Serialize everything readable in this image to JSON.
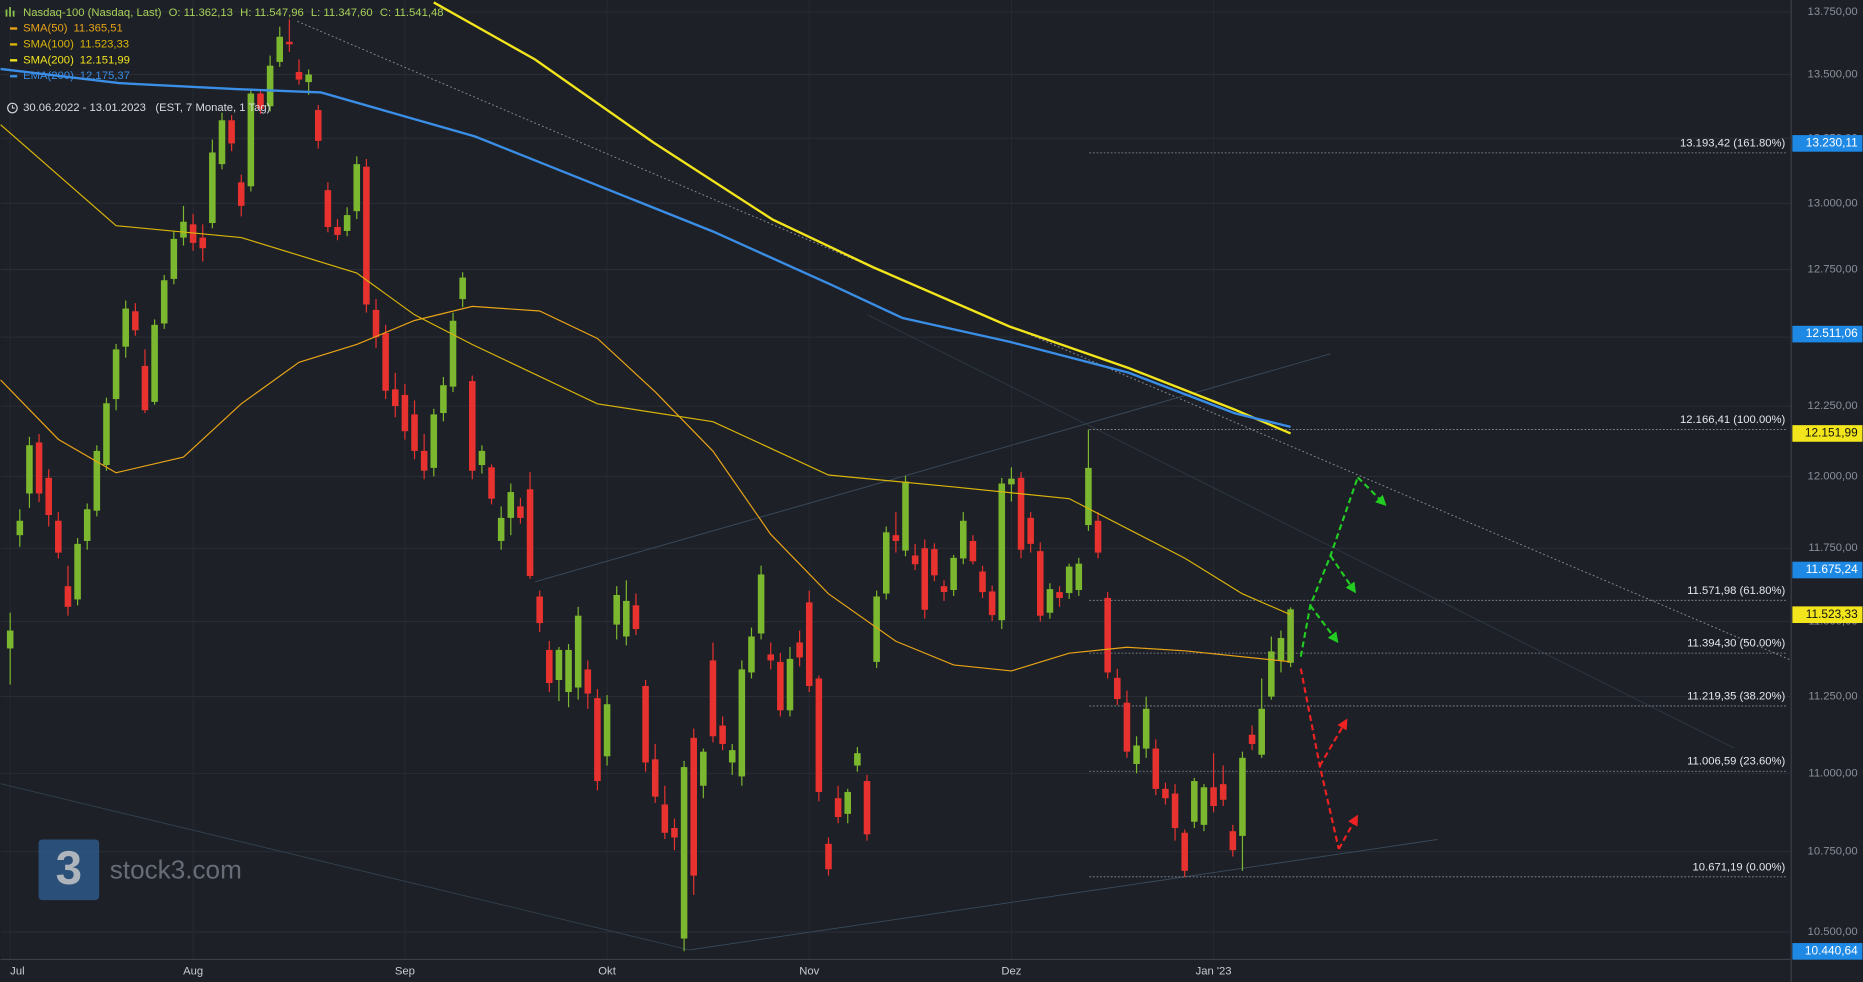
{
  "chart_data": {
    "type": "candlestick",
    "title": "Nasdaq-100 (Nasdaq, Last)",
    "ohlc_labels": [
      "O: 11.362,13",
      "H: 11.547,96",
      "L: 11.347,60",
      "C: 11.541,48"
    ],
    "date_range": "30.06.2022 - 13.01.2023",
    "period": "(EST, 7 Monate, 1 Tag)",
    "watermark": "stock3.com",
    "logo": "3",
    "log_scale": true,
    "grid": true,
    "up_color": "#7cb82f",
    "down_color": "#e8322f",
    "xlim": [
      -1,
      185
    ],
    "xticks": [
      {
        "value": 0,
        "label": "Jul"
      },
      {
        "value": 19,
        "label": "Aug"
      },
      {
        "value": 41,
        "label": "Sep"
      },
      {
        "value": 62,
        "label": "Okt"
      },
      {
        "value": 83,
        "label": "Nov"
      },
      {
        "value": 104,
        "label": "Dez"
      },
      {
        "value": 125,
        "label": "Jan '23"
      }
    ],
    "ylim": [
      10416,
      13798
    ],
    "yticks": [
      {
        "value": 10500,
        "label": "10.500,00"
      },
      {
        "value": 10750,
        "label": "10.750,00"
      },
      {
        "value": 11000,
        "label": "11.000,00"
      },
      {
        "value": 11250,
        "label": "11.250,00"
      },
      {
        "value": 11500,
        "label": "11.500,00"
      },
      {
        "value": 11750,
        "label": "11.750,00"
      },
      {
        "value": 12000,
        "label": "12.000,00"
      },
      {
        "value": 12250,
        "label": "12.250,00"
      },
      {
        "value": 12500,
        "label": "12.500,00"
      },
      {
        "value": 12750,
        "label": "12.750,00"
      },
      {
        "value": 13000,
        "label": "13.000,00"
      },
      {
        "value": 13250,
        "label": "13.250,00"
      },
      {
        "value": 13500,
        "label": "13.500,00"
      },
      {
        "value": 13750,
        "label": "13.750,00"
      }
    ],
    "candles": [
      [
        11410,
        11530,
        11290,
        11470
      ],
      [
        11795,
        11885,
        11755,
        11845
      ],
      [
        11940,
        12140,
        11890,
        12110
      ],
      [
        12120,
        12150,
        11910,
        11940
      ],
      [
        11995,
        12025,
        11825,
        11865
      ],
      [
        11845,
        11875,
        11715,
        11735
      ],
      [
        11620,
        11690,
        11520,
        11550
      ],
      [
        11575,
        11785,
        11555,
        11765
      ],
      [
        11775,
        11905,
        11745,
        11885
      ],
      [
        11880,
        12110,
        11860,
        12090
      ],
      [
        12040,
        12280,
        12020,
        12260
      ],
      [
        12275,
        12475,
        12235,
        12455
      ],
      [
        12465,
        12635,
        12425,
        12605
      ],
      [
        12595,
        12625,
        12505,
        12525
      ],
      [
        12395,
        12455,
        12225,
        12235
      ],
      [
        12265,
        12565,
        12255,
        12545
      ],
      [
        12550,
        12730,
        12530,
        12710
      ],
      [
        12715,
        12895,
        12695,
        12865
      ],
      [
        12870,
        12990,
        12840,
        12930
      ],
      [
        12920,
        12960,
        12820,
        12850
      ],
      [
        12870,
        12920,
        12780,
        12830
      ],
      [
        12925,
        13245,
        12905,
        13195
      ],
      [
        13150,
        13350,
        13130,
        13320
      ],
      [
        13320,
        13340,
        13200,
        13230
      ],
      [
        13080,
        13110,
        12950,
        12990
      ],
      [
        13065,
        13445,
        13045,
        13425
      ],
      [
        13425,
        13435,
        13345,
        13365
      ],
      [
        13375,
        13575,
        13355,
        13535
      ],
      [
        13550,
        13690,
        13530,
        13650
      ],
      [
        13630,
        13720,
        13590,
        13620
      ],
      [
        13510,
        13560,
        13460,
        13480
      ],
      [
        13470,
        13520,
        13420,
        13500
      ],
      [
        13360,
        13380,
        13210,
        13240
      ],
      [
        13050,
        13080,
        12890,
        12910
      ],
      [
        12910,
        12940,
        12860,
        12880
      ],
      [
        12895,
        12985,
        12875,
        12955
      ],
      [
        12970,
        13180,
        12940,
        13150
      ],
      [
        13140,
        13170,
        12590,
        12620
      ],
      [
        12600,
        12640,
        12460,
        12500
      ],
      [
        12515,
        12545,
        12275,
        12305
      ],
      [
        12310,
        12370,
        12210,
        12250
      ],
      [
        12290,
        12330,
        12130,
        12160
      ],
      [
        12220,
        12270,
        12060,
        12090
      ],
      [
        12090,
        12150,
        11990,
        12020
      ],
      [
        12030,
        12240,
        12000,
        12220
      ],
      [
        12225,
        12355,
        12195,
        12325
      ],
      [
        12320,
        12590,
        12300,
        12560
      ],
      [
        12640,
        12740,
        12610,
        12720
      ],
      [
        12340,
        12360,
        11990,
        12020
      ],
      [
        12040,
        12110,
        12010,
        12090
      ],
      [
        12032,
        12042,
        11902,
        11922
      ],
      [
        11775,
        11895,
        11745,
        11855
      ],
      [
        11855,
        11975,
        11795,
        11945
      ],
      [
        11895,
        11925,
        11835,
        11855
      ],
      [
        11955,
        12015,
        11645,
        11655
      ],
      [
        11585,
        11605,
        11465,
        11495
      ],
      [
        11405,
        11435,
        11265,
        11295
      ],
      [
        11305,
        11415,
        11235,
        11405
      ],
      [
        11265,
        11425,
        11215,
        11405
      ],
      [
        11280,
        11550,
        11240,
        11520
      ],
      [
        11340,
        11370,
        11210,
        11260
      ],
      [
        11245,
        11275,
        10945,
        10975
      ],
      [
        11055,
        11255,
        11025,
        11225
      ],
      [
        11490,
        11620,
        11440,
        11590
      ],
      [
        11450,
        11640,
        11420,
        11570
      ],
      [
        11555,
        11595,
        11455,
        11475
      ],
      [
        11285,
        11305,
        11005,
        11035
      ],
      [
        11045,
        11095,
        10905,
        10925
      ],
      [
        10900,
        10960,
        10790,
        10810
      ],
      [
        10825,
        10855,
        10755,
        10795
      ],
      [
        10480,
        11040,
        10441,
        11020
      ],
      [
        11115,
        11145,
        10615,
        10675
      ],
      [
        10960,
        11080,
        10920,
        11070
      ],
      [
        11370,
        11430,
        11100,
        11120
      ],
      [
        11155,
        11185,
        11075,
        11095
      ],
      [
        11035,
        11095,
        10995,
        11075
      ],
      [
        10990,
        11370,
        10960,
        11340
      ],
      [
        11330,
        11480,
        11310,
        11450
      ],
      [
        11460,
        11690,
        11440,
        11660
      ],
      [
        11390,
        11430,
        11340,
        11370
      ],
      [
        11365,
        11395,
        11185,
        11205
      ],
      [
        11205,
        11415,
        11185,
        11375
      ],
      [
        11430,
        11470,
        11350,
        11380
      ],
      [
        11565,
        11605,
        11265,
        11285
      ],
      [
        11310,
        11320,
        10910,
        10940
      ],
      [
        10775,
        10795,
        10675,
        10695
      ],
      [
        10920,
        10960,
        10840,
        10860
      ],
      [
        10870,
        10950,
        10840,
        10940
      ],
      [
        11025,
        11085,
        11005,
        11065
      ],
      [
        10975,
        10995,
        10785,
        10805
      ],
      [
        11365,
        11605,
        11345,
        11585
      ],
      [
        11595,
        11825,
        11575,
        11805
      ],
      [
        11795,
        11875,
        11735,
        11775
      ],
      [
        11742,
        12002,
        11722,
        11982
      ],
      [
        11725,
        11765,
        11675,
        11695
      ],
      [
        11750,
        11780,
        11510,
        11540
      ],
      [
        11747,
        11767,
        11637,
        11657
      ],
      [
        11620,
        11640,
        11570,
        11600
      ],
      [
        11607,
        11727,
        11587,
        11717
      ],
      [
        11715,
        11875,
        11695,
        11845
      ],
      [
        11775,
        11795,
        11695,
        11705
      ],
      [
        11670,
        11690,
        11580,
        11600
      ],
      [
        11602,
        11622,
        11502,
        11522
      ],
      [
        11505,
        11995,
        11475,
        11975
      ],
      [
        11972,
        12032,
        11912,
        11992
      ],
      [
        11995,
        12015,
        11715,
        11745
      ],
      [
        11855,
        11875,
        11735,
        11765
      ],
      [
        11740,
        11770,
        11500,
        11520
      ],
      [
        11530,
        11630,
        11510,
        11610
      ],
      [
        11600,
        11620,
        11550,
        11580
      ],
      [
        11597,
        11697,
        11577,
        11687
      ],
      [
        11607,
        11717,
        11587,
        11697
      ],
      [
        11830,
        12166,
        11810,
        12030
      ],
      [
        11845,
        11875,
        11715,
        11735
      ],
      [
        11580,
        11600,
        11310,
        11330
      ],
      [
        11312,
        11342,
        11222,
        11242
      ],
      [
        11230,
        11270,
        11050,
        11070
      ],
      [
        11030,
        11120,
        11000,
        11090
      ],
      [
        11080,
        11250,
        11050,
        11210
      ],
      [
        11080,
        11110,
        10930,
        10950
      ],
      [
        10950,
        10970,
        10900,
        10920
      ],
      [
        10935,
        10965,
        10785,
        10825
      ],
      [
        10810,
        10820,
        10671,
        10690
      ],
      [
        10845,
        10985,
        10825,
        10975
      ],
      [
        10835,
        10965,
        10815,
        10955
      ],
      [
        10955,
        11065,
        10875,
        10895
      ],
      [
        10965,
        11025,
        10895,
        10915
      ],
      [
        10815,
        10835,
        10735,
        10755
      ],
      [
        10800,
        11070,
        10690,
        11050
      ],
      [
        11125,
        11155,
        11075,
        11095
      ],
      [
        11060,
        11310,
        11050,
        11210
      ],
      [
        11250,
        11450,
        11240,
        11400
      ],
      [
        11370,
        11470,
        11330,
        11445
      ],
      [
        11362.13,
        11547.96,
        11347.6,
        11541.48
      ]
    ],
    "series": [
      {
        "name": "SMA(50)",
        "color": "#e8a317",
        "last_label": "11.365,51",
        "x": [
          -1,
          5,
          11,
          18,
          24,
          30,
          36,
          42,
          48,
          55,
          61,
          67,
          73,
          79,
          85,
          92,
          98,
          104,
          110,
          116,
          122,
          133
        ],
        "values": [
          12344,
          12131,
          12013,
          12068,
          12258,
          12408,
          12473,
          12561,
          12613,
          12596,
          12495,
          12301,
          12089,
          11798,
          11594,
          11434,
          11355,
          11335,
          11394,
          11414,
          11402,
          11365.51
        ]
      },
      {
        "name": "SMA(100)",
        "color": "#d9b40a",
        "last_label": "11.523,33",
        "x": [
          -1,
          11,
          24,
          36,
          42,
          48,
          61,
          73,
          85,
          98,
          110,
          122,
          128,
          133
        ],
        "values": [
          13303,
          12915,
          12870,
          12737,
          12582,
          12473,
          12258,
          12194,
          12005,
          11963,
          11922,
          11716,
          11594,
          11523.33
        ]
      },
      {
        "name": "SMA(200)",
        "color": "#f2e51c",
        "last_label": "12.151,99",
        "x": [
          44,
          54.5,
          66.8,
          79.2,
          89.6,
          103.8,
          116.2,
          127.2,
          133
        ],
        "values": [
          13788,
          13560,
          13234,
          12938,
          12759,
          12539,
          12387,
          12237,
          12151.99
        ]
      },
      {
        "name": "EMA(200)",
        "color": "#3a8ee6",
        "last_label": "12.175,37",
        "x": [
          -1,
          11.3,
          23.7,
          32.3,
          39.7,
          48.3,
          60.7,
          73,
          85.3,
          92.7,
          103.8,
          116.2,
          127.2,
          133
        ],
        "values": [
          13522,
          13466,
          13442,
          13429,
          13349,
          13257,
          13073,
          12893,
          12693,
          12570,
          12483,
          12370,
          12224,
          12175.37
        ]
      }
    ],
    "fib_levels": [
      {
        "value": 13193.42,
        "label": "13.193,42 (161.80%)"
      },
      {
        "value": 12166.41,
        "label": "12.166,41 (100.00%)"
      },
      {
        "value": 11571.98,
        "label": "11.571,98 (61.80%)"
      },
      {
        "value": 11394.3,
        "label": "11.394,30 (50.00%)"
      },
      {
        "value": 11219.35,
        "label": "11.219,35 (38.20%)"
      },
      {
        "value": 11006.59,
        "label": "11.006,59 (23.60%)"
      },
      {
        "value": 10671.19,
        "label": "10.671,19 (0.00%)"
      }
    ],
    "price_tags": [
      {
        "value": 13230.11,
        "label": "13.230,11",
        "color": "#1e88e5",
        "text_color": "#ffffff"
      },
      {
        "value": 12511.06,
        "label": "12.511,06",
        "color": "#1e88e5",
        "text_color": "#ffffff"
      },
      {
        "value": 12151.99,
        "label": "12.151,99",
        "color": "#f2e51c",
        "text_color": "#111111"
      },
      {
        "value": 11675.24,
        "label": "11.675,24",
        "color": "#1e88e5",
        "text_color": "#ffffff"
      },
      {
        "value": 11523.33,
        "label": "11.523,33",
        "color": "#f2e51c",
        "text_color": "#111111"
      },
      {
        "value": 10440.64,
        "label": "10.440,64",
        "color": "#1e88e5",
        "text_color": "#ffffff"
      }
    ]
  }
}
